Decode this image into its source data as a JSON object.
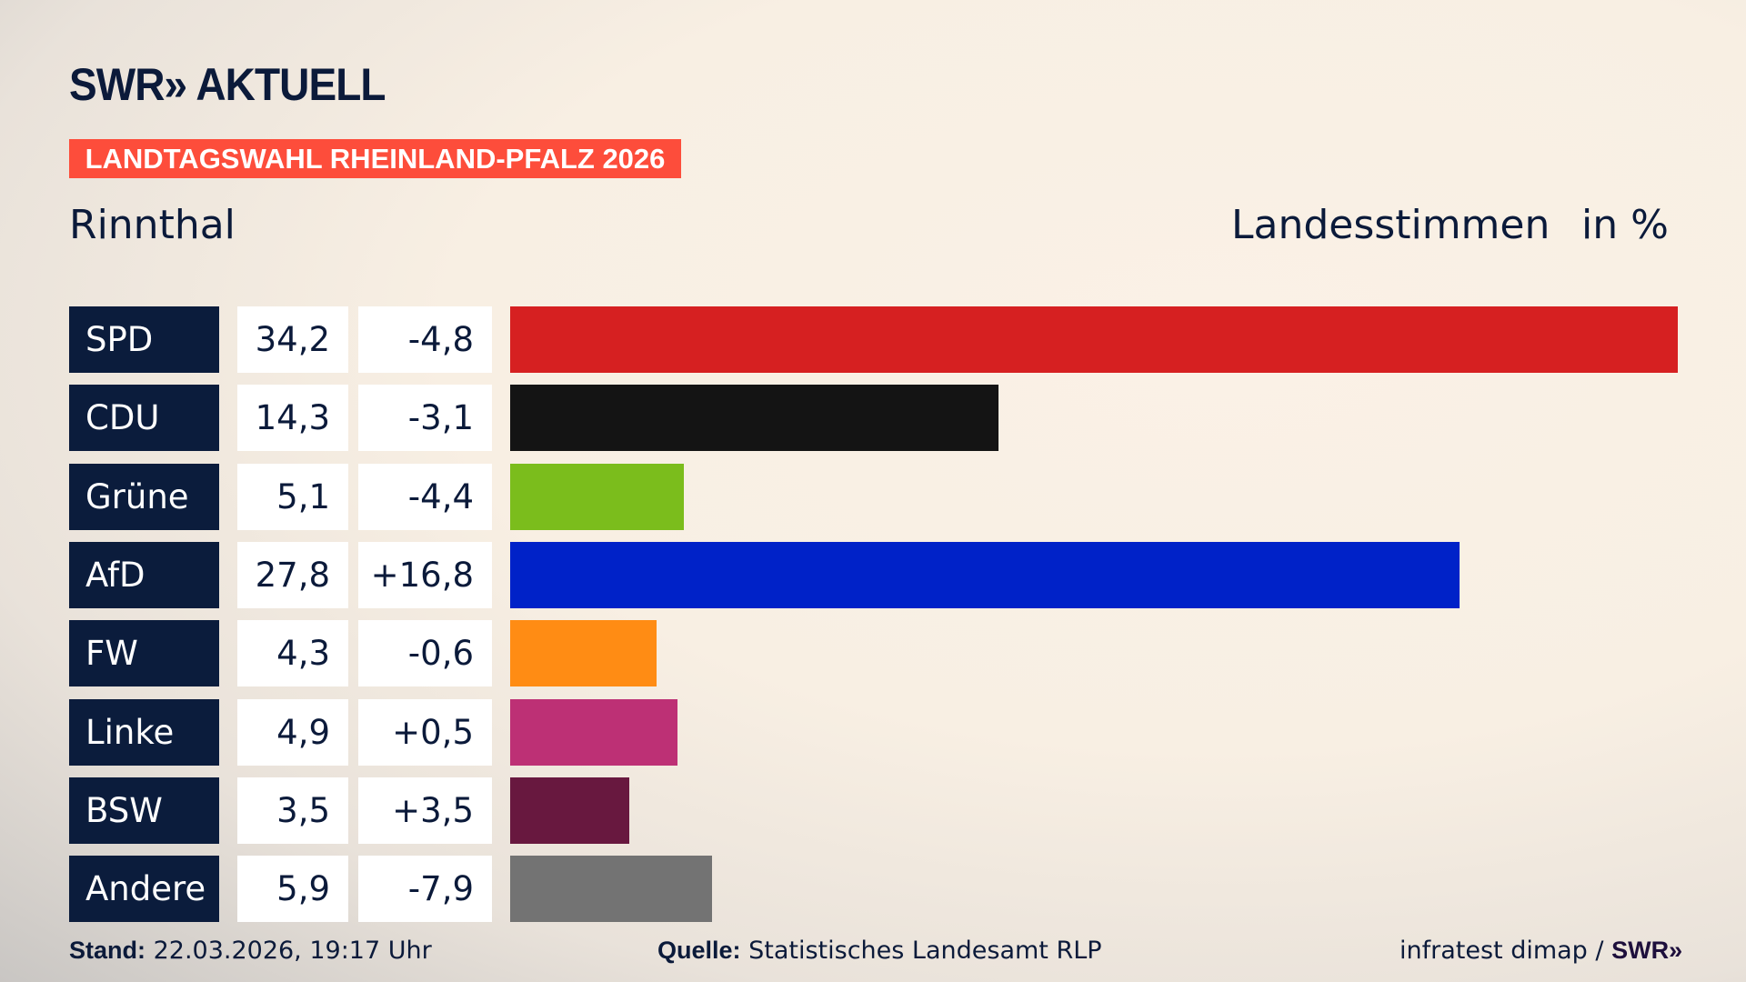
{
  "logo": "SWR» AKTUELL",
  "banner": "LANDTAGSWAHL RHEINLAND-PFALZ 2026",
  "place": "Rinnthal",
  "measure": "Landesstimmen",
  "unit": "in %",
  "chart_data": {
    "type": "bar",
    "orientation": "horizontal",
    "categories": [
      "SPD",
      "CDU",
      "Grüne",
      "AfD",
      "FW",
      "Linke",
      "BSW",
      "Andere"
    ],
    "values": [
      34.2,
      14.3,
      5.1,
      27.8,
      4.3,
      4.9,
      3.5,
      5.9
    ],
    "value_labels": [
      "34,2",
      "14,3",
      "5,1",
      "27,8",
      "4,3",
      "4,9",
      "3,5",
      "5,9"
    ],
    "diff_labels": [
      "-4,8",
      "-3,1",
      "-4,4",
      "+16,8",
      "-0,6",
      "+0,5",
      "+3,5",
      "-7,9"
    ],
    "colors": [
      "#d62021",
      "#141414",
      "#7bbd1c",
      "#0022c8",
      "#ff8c14",
      "#bd3075",
      "#68183f",
      "#737373"
    ]
  },
  "footer": {
    "stand_label": "Stand:",
    "stand_value": "22.03.2026, 19:17 Uhr",
    "source_label": "Quelle:",
    "source_value": "Statistisches Landesamt RLP",
    "credit": "infratest dimap / ",
    "credit_logo": "SWR»"
  }
}
